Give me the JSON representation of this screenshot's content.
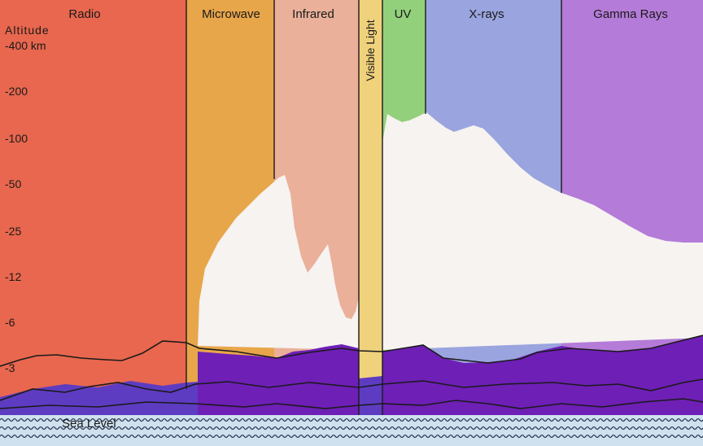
{
  "bands": [
    {
      "id": "radio",
      "label": "Radio",
      "color": "#e8674e"
    },
    {
      "id": "microwave",
      "label": "Microwave",
      "color": "#e8a64a"
    },
    {
      "id": "infrared",
      "label": "Infrared",
      "color": "#eab09a"
    },
    {
      "id": "visible",
      "label": "Visible Light",
      "color": "#f0d27c"
    },
    {
      "id": "uv",
      "label": "UV",
      "color": "#93d07b"
    },
    {
      "id": "xrays",
      "label": "X-rays",
      "color": "#9aa4de"
    },
    {
      "id": "gamma",
      "label": "Gamma Rays",
      "color": "#b57bd8"
    }
  ],
  "altitude_axis": {
    "title": "Altitude",
    "ticks": [
      "-400 km",
      "-200",
      "-100",
      "-50",
      "-25",
      "-12",
      "-6",
      "-3"
    ]
  },
  "sea_level_label": "Sea Level",
  "colors": {
    "atmosphere": "#f6f3f1",
    "terrain_front": "#6e1fb6",
    "terrain_back": "#5d3cc2",
    "sea": "#cfe1ee",
    "outline": "#1a1a1a"
  }
}
